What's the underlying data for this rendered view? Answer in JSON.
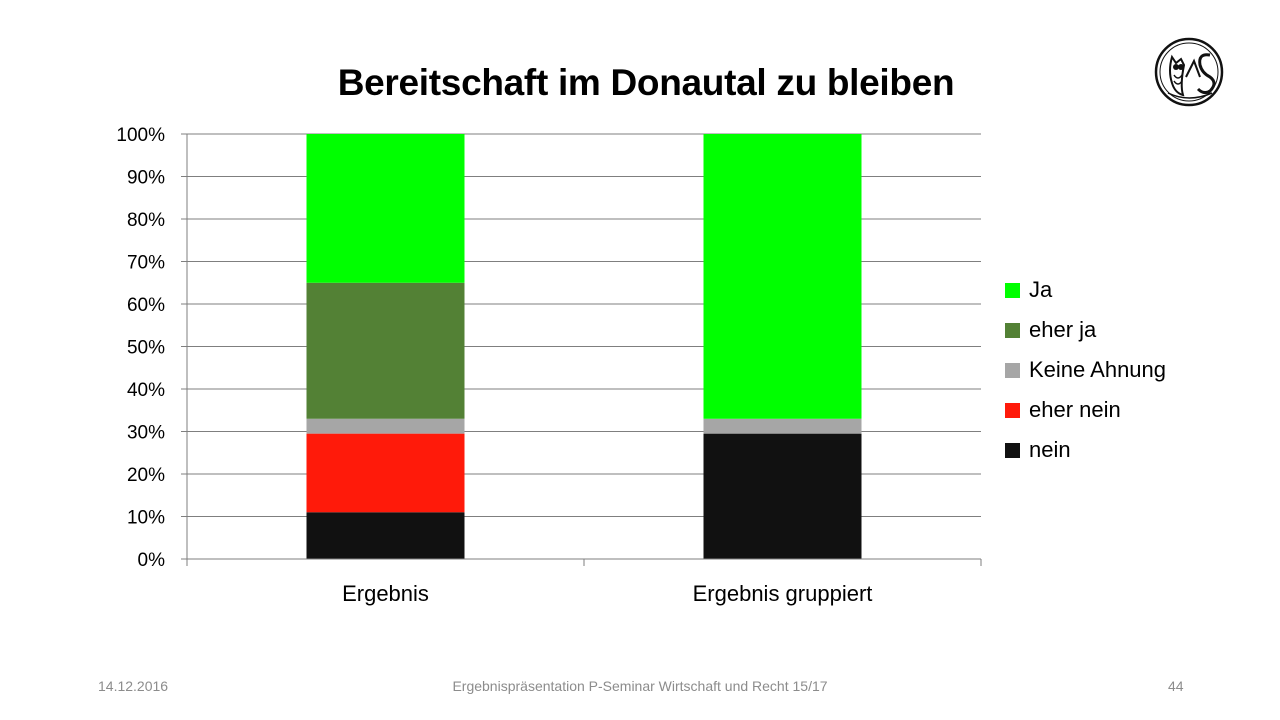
{
  "slide": {
    "title": "Bereitschaft im Donautal zu bleiben",
    "footer_date": "14.12.2016",
    "footer_center": "Ergebnispräsentation P-Seminar Wirtschaft und Recht 15/17",
    "page_number": "44"
  },
  "chart_data": {
    "type": "bar",
    "stacked": true,
    "percent_axis": true,
    "title": "Bereitschaft im Donautal zu bleiben",
    "xlabel": "",
    "ylabel": "",
    "ylim": [
      0,
      100
    ],
    "y_ticks": [
      "0%",
      "10%",
      "20%",
      "30%",
      "40%",
      "50%",
      "60%",
      "70%",
      "80%",
      "90%",
      "100%"
    ],
    "grid": true,
    "legend_position": "right",
    "categories": [
      "Ergebnis",
      "Ergebnis gruppiert"
    ],
    "series": [
      {
        "name": "nein",
        "color": "#111111",
        "values": [
          11,
          29.5
        ]
      },
      {
        "name": "eher nein",
        "color": "#ff1a0a",
        "values": [
          18.5,
          0
        ]
      },
      {
        "name": "Keine Ahnung",
        "color": "#a6a6a6",
        "values": [
          3.5,
          3.5
        ]
      },
      {
        "name": "eher ja",
        "color": "#538135",
        "values": [
          32,
          0
        ]
      },
      {
        "name": "Ja",
        "color": "#00ff00",
        "values": [
          35,
          67
        ]
      }
    ]
  }
}
